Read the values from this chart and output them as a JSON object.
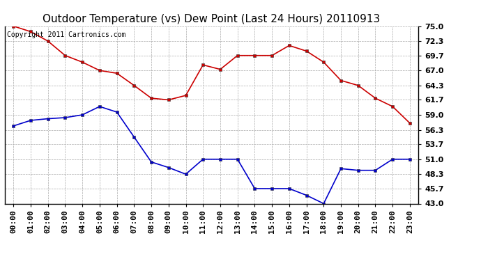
{
  "title": "Outdoor Temperature (vs) Dew Point (Last 24 Hours) 20110913",
  "copyright": "Copyright 2011 Cartronics.com",
  "hours": [
    "00:00",
    "01:00",
    "02:00",
    "03:00",
    "04:00",
    "05:00",
    "06:00",
    "07:00",
    "08:00",
    "09:00",
    "10:00",
    "11:00",
    "12:00",
    "13:00",
    "14:00",
    "15:00",
    "16:00",
    "17:00",
    "18:00",
    "19:00",
    "20:00",
    "21:00",
    "22:00",
    "23:00"
  ],
  "temp": [
    75.0,
    74.0,
    72.3,
    69.7,
    68.5,
    67.0,
    66.5,
    64.3,
    62.0,
    61.7,
    62.5,
    68.0,
    67.2,
    69.7,
    69.7,
    69.7,
    71.5,
    70.5,
    68.5,
    65.2,
    64.3,
    62.0,
    60.5,
    57.5
  ],
  "dew": [
    57.0,
    58.0,
    58.3,
    58.5,
    59.0,
    60.5,
    59.5,
    55.0,
    50.5,
    49.5,
    48.3,
    51.0,
    51.0,
    51.0,
    45.7,
    45.7,
    45.7,
    44.5,
    43.0,
    49.3,
    49.0,
    49.0,
    51.0,
    51.0
  ],
  "ylim_min": 43.0,
  "ylim_max": 75.0,
  "yticks": [
    43.0,
    45.7,
    48.3,
    51.0,
    53.7,
    56.3,
    59.0,
    61.7,
    64.3,
    67.0,
    69.7,
    72.3,
    75.0
  ],
  "temp_color": "#cc0000",
  "dew_color": "#0000cc",
  "background_color": "white",
  "grid_color": "#aaaaaa",
  "marker": "s",
  "marker_size": 3,
  "line_width": 1.2,
  "title_fontsize": 11,
  "tick_fontsize": 8,
  "copyright_fontsize": 7
}
